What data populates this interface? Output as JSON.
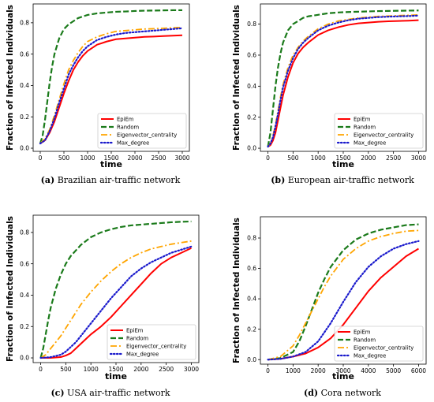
{
  "styles": {
    "EpiEm": {
      "color": "#ff0000",
      "dash": "",
      "width": 2
    },
    "Random": {
      "color": "#1a7a1a",
      "dash": "7,3",
      "width": 2.2
    },
    "Eigenvector_centrality": {
      "color": "#ffa500",
      "dash": "8,3,2,3",
      "width": 1.8
    },
    "Max_degree": {
      "color": "#1a1acc",
      "dash": "1.5,2.5",
      "width": 2.2
    }
  },
  "chart_data": [
    {
      "type": "line",
      "id": "a",
      "caption_letter": "(a)",
      "caption_text": " Brazilian air-traffic network",
      "xlabel": "time",
      "ylabel": "Fraction of Infected Individuals",
      "xlim": [
        -150,
        3150
      ],
      "ylim": [
        -0.02,
        0.92
      ],
      "xticks": [
        0,
        500,
        1000,
        1500,
        2000,
        2500,
        3000
      ],
      "yticks": [
        0.0,
        0.2,
        0.4,
        0.6,
        0.8
      ],
      "ytick_labels": [
        "0.0",
        "0.2",
        "0.4",
        "0.6",
        "0.8"
      ],
      "series": [
        {
          "name": "EpiEm",
          "x": [
            0,
            100,
            200,
            300,
            400,
            500,
            600,
            700,
            800,
            900,
            1000,
            1200,
            1400,
            1600,
            1800,
            2000,
            2200,
            2400,
            2600,
            2800,
            3000
          ],
          "y": [
            0.03,
            0.05,
            0.1,
            0.17,
            0.26,
            0.35,
            0.43,
            0.5,
            0.55,
            0.59,
            0.62,
            0.66,
            0.68,
            0.695,
            0.7,
            0.705,
            0.71,
            0.712,
            0.715,
            0.718,
            0.72
          ]
        },
        {
          "name": "Random",
          "x": [
            0,
            50,
            100,
            150,
            200,
            250,
            300,
            400,
            500,
            600,
            700,
            800,
            900,
            1000,
            1200,
            1400,
            1600,
            1800,
            2000,
            2200,
            2400,
            2600,
            2800,
            3000
          ],
          "y": [
            0.03,
            0.08,
            0.18,
            0.3,
            0.42,
            0.52,
            0.6,
            0.7,
            0.76,
            0.79,
            0.81,
            0.83,
            0.84,
            0.85,
            0.86,
            0.865,
            0.87,
            0.872,
            0.875,
            0.877,
            0.878,
            0.879,
            0.88,
            0.88
          ]
        },
        {
          "name": "Eigenvector_centrality",
          "x": [
            0,
            100,
            200,
            300,
            400,
            500,
            600,
            700,
            800,
            900,
            1000,
            1200,
            1400,
            1600,
            1800,
            2000,
            2200,
            2400,
            2600,
            2800,
            3000
          ],
          "y": [
            0.03,
            0.06,
            0.12,
            0.21,
            0.31,
            0.41,
            0.5,
            0.56,
            0.61,
            0.65,
            0.68,
            0.71,
            0.73,
            0.745,
            0.75,
            0.755,
            0.76,
            0.762,
            0.765,
            0.768,
            0.77
          ]
        },
        {
          "name": "Max_degree",
          "x": [
            0,
            100,
            200,
            300,
            400,
            500,
            600,
            700,
            800,
            900,
            1000,
            1200,
            1400,
            1600,
            1800,
            2000,
            2200,
            2400,
            2600,
            2800,
            3000
          ],
          "y": [
            0.03,
            0.05,
            0.11,
            0.19,
            0.29,
            0.38,
            0.47,
            0.53,
            0.58,
            0.62,
            0.65,
            0.69,
            0.71,
            0.725,
            0.735,
            0.74,
            0.745,
            0.75,
            0.755,
            0.76,
            0.765
          ]
        }
      ],
      "legend": {
        "position": "lower-right",
        "entries": [
          "EpiEm",
          "Random",
          "Eigenvector_centrality",
          "Max_degree"
        ]
      }
    },
    {
      "type": "line",
      "id": "b",
      "caption_letter": "(b)",
      "caption_text": " European air-traffic network",
      "xlabel": "time",
      "ylabel": "Fraction of Infected Individuals",
      "xlim": [
        -150,
        3150
      ],
      "ylim": [
        -0.02,
        0.93
      ],
      "xticks": [
        0,
        500,
        1000,
        1500,
        2000,
        2500,
        3000
      ],
      "yticks": [
        0.0,
        0.2,
        0.4,
        0.6,
        0.8
      ],
      "ytick_labels": [
        "0.0",
        "0.2",
        "0.4",
        "0.6",
        "0.8"
      ],
      "series": [
        {
          "name": "EpiEm",
          "x": [
            0,
            50,
            100,
            150,
            200,
            250,
            300,
            400,
            500,
            600,
            700,
            800,
            1000,
            1200,
            1400,
            1600,
            1800,
            2000,
            2200,
            2400,
            2600,
            2800,
            3000
          ],
          "y": [
            0.01,
            0.02,
            0.05,
            0.1,
            0.18,
            0.26,
            0.34,
            0.46,
            0.55,
            0.61,
            0.65,
            0.68,
            0.73,
            0.76,
            0.78,
            0.795,
            0.805,
            0.81,
            0.815,
            0.818,
            0.82,
            0.822,
            0.825
          ]
        },
        {
          "name": "Random",
          "x": [
            0,
            50,
            100,
            150,
            200,
            250,
            300,
            400,
            500,
            600,
            700,
            800,
            1000,
            1200,
            1400,
            1600,
            1800,
            2000,
            2200,
            2400,
            2600,
            2800,
            3000
          ],
          "y": [
            0.01,
            0.1,
            0.25,
            0.4,
            0.52,
            0.61,
            0.68,
            0.76,
            0.8,
            0.82,
            0.84,
            0.85,
            0.86,
            0.87,
            0.875,
            0.878,
            0.88,
            0.882,
            0.884,
            0.885,
            0.886,
            0.887,
            0.888
          ]
        },
        {
          "name": "Eigenvector_centrality",
          "x": [
            0,
            50,
            100,
            150,
            200,
            250,
            300,
            400,
            500,
            600,
            700,
            800,
            1000,
            1200,
            1400,
            1600,
            1800,
            2000,
            2200,
            2400,
            2600,
            2800,
            3000
          ],
          "y": [
            0.01,
            0.03,
            0.08,
            0.15,
            0.24,
            0.33,
            0.41,
            0.52,
            0.6,
            0.65,
            0.69,
            0.72,
            0.77,
            0.8,
            0.82,
            0.83,
            0.84,
            0.845,
            0.85,
            0.852,
            0.855,
            0.857,
            0.86
          ]
        },
        {
          "name": "Max_degree",
          "x": [
            0,
            50,
            100,
            150,
            200,
            250,
            300,
            400,
            500,
            600,
            700,
            800,
            1000,
            1200,
            1400,
            1600,
            1800,
            2000,
            2200,
            2400,
            2600,
            2800,
            3000
          ],
          "y": [
            0.01,
            0.03,
            0.07,
            0.14,
            0.22,
            0.31,
            0.39,
            0.5,
            0.58,
            0.64,
            0.68,
            0.71,
            0.76,
            0.79,
            0.81,
            0.825,
            0.835,
            0.84,
            0.845,
            0.848,
            0.85,
            0.852,
            0.855
          ]
        }
      ],
      "legend": {
        "position": "lower-right",
        "entries": [
          "EpiEm",
          "Random",
          "Eigenvector_centrality",
          "Max_degree"
        ]
      }
    },
    {
      "type": "line",
      "id": "c",
      "caption_letter": "(c)",
      "caption_text": " USA air-traffic network",
      "xlabel": "time",
      "ylabel": "Fraction of Infected Individuals",
      "xlim": [
        -150,
        3150
      ],
      "ylim": [
        -0.03,
        0.91
      ],
      "xticks": [
        0,
        500,
        1000,
        1500,
        2000,
        2500,
        3000
      ],
      "yticks": [
        0.0,
        0.2,
        0.4,
        0.6,
        0.8
      ],
      "ytick_labels": [
        "0.0",
        "0.2",
        "0.4",
        "0.6",
        "0.8"
      ],
      "series": [
        {
          "name": "EpiEm",
          "x": [
            0,
            200,
            400,
            500,
            600,
            700,
            800,
            900,
            1000,
            1200,
            1400,
            1600,
            1800,
            2000,
            2200,
            2400,
            2600,
            2800,
            3000
          ],
          "y": [
            0.0,
            0.0,
            0.005,
            0.015,
            0.03,
            0.06,
            0.09,
            0.12,
            0.15,
            0.2,
            0.26,
            0.33,
            0.4,
            0.47,
            0.54,
            0.6,
            0.64,
            0.67,
            0.7
          ]
        },
        {
          "name": "Random",
          "x": [
            0,
            50,
            100,
            150,
            200,
            300,
            400,
            500,
            600,
            800,
            1000,
            1200,
            1400,
            1600,
            1800,
            2000,
            2200,
            2400,
            2600,
            2800,
            3000
          ],
          "y": [
            0.0,
            0.06,
            0.15,
            0.24,
            0.32,
            0.44,
            0.53,
            0.6,
            0.65,
            0.72,
            0.77,
            0.8,
            0.82,
            0.835,
            0.845,
            0.85,
            0.855,
            0.86,
            0.865,
            0.868,
            0.87
          ]
        },
        {
          "name": "Eigenvector_centrality",
          "x": [
            0,
            100,
            200,
            300,
            400,
            500,
            600,
            700,
            800,
            1000,
            1200,
            1400,
            1600,
            1800,
            2000,
            2200,
            2400,
            2600,
            2800,
            3000
          ],
          "y": [
            0.0,
            0.02,
            0.06,
            0.1,
            0.14,
            0.19,
            0.24,
            0.29,
            0.34,
            0.42,
            0.49,
            0.55,
            0.6,
            0.64,
            0.67,
            0.695,
            0.71,
            0.725,
            0.735,
            0.745
          ]
        },
        {
          "name": "Max_degree",
          "x": [
            0,
            200,
            400,
            500,
            600,
            700,
            800,
            1000,
            1200,
            1400,
            1600,
            1800,
            2000,
            2200,
            2400,
            2600,
            2800,
            3000
          ],
          "y": [
            0.0,
            0.005,
            0.02,
            0.04,
            0.07,
            0.1,
            0.14,
            0.22,
            0.3,
            0.38,
            0.45,
            0.52,
            0.57,
            0.61,
            0.64,
            0.67,
            0.69,
            0.71
          ]
        }
      ],
      "legend": {
        "position": "lower-right",
        "entries": [
          "EpiEm",
          "Random",
          "Eigenvector_centrality",
          "Max_degree"
        ]
      }
    },
    {
      "type": "line",
      "id": "d",
      "caption_letter": "(d)",
      "caption_text": " Cora network",
      "xlabel": "time",
      "ylabel": "Fraction of Infected Individuals",
      "xlim": [
        -300,
        6300
      ],
      "ylim": [
        -0.03,
        0.94
      ],
      "xticks": [
        0,
        1000,
        2000,
        3000,
        4000,
        5000,
        6000
      ],
      "yticks": [
        0.0,
        0.2,
        0.4,
        0.6,
        0.8
      ],
      "ytick_labels": [
        "0.0",
        "0.2",
        "0.4",
        "0.6",
        "0.8"
      ],
      "series": [
        {
          "name": "EpiEm",
          "x": [
            0,
            500,
            1000,
            1500,
            2000,
            2500,
            3000,
            3500,
            4000,
            4500,
            5000,
            5500,
            6000
          ],
          "y": [
            0.0,
            0.005,
            0.02,
            0.04,
            0.08,
            0.14,
            0.23,
            0.34,
            0.45,
            0.54,
            0.61,
            0.68,
            0.73
          ]
        },
        {
          "name": "Random",
          "x": [
            0,
            500,
            1000,
            1250,
            1500,
            1750,
            2000,
            2250,
            2500,
            3000,
            3500,
            4000,
            4500,
            5000,
            5500,
            6000
          ],
          "y": [
            0.0,
            0.01,
            0.05,
            0.12,
            0.22,
            0.33,
            0.44,
            0.53,
            0.61,
            0.72,
            0.79,
            0.83,
            0.855,
            0.87,
            0.885,
            0.89
          ]
        },
        {
          "name": "Eigenvector_centrality",
          "x": [
            0,
            500,
            1000,
            1250,
            1500,
            1750,
            2000,
            2250,
            2500,
            3000,
            3500,
            4000,
            4500,
            5000,
            5500,
            6000
          ],
          "y": [
            0.0,
            0.02,
            0.09,
            0.16,
            0.24,
            0.32,
            0.4,
            0.48,
            0.55,
            0.66,
            0.73,
            0.78,
            0.81,
            0.83,
            0.845,
            0.85
          ]
        },
        {
          "name": "Max_degree",
          "x": [
            0,
            500,
            1000,
            1500,
            2000,
            2500,
            3000,
            3500,
            4000,
            4500,
            5000,
            5500,
            6000
          ],
          "y": [
            0.0,
            0.005,
            0.02,
            0.05,
            0.12,
            0.24,
            0.38,
            0.51,
            0.61,
            0.68,
            0.73,
            0.76,
            0.78
          ]
        }
      ],
      "legend": {
        "position": "lower-right",
        "entries": [
          "EpiEm",
          "Random",
          "Eigenvector_centrality",
          "Max_degree"
        ]
      }
    }
  ]
}
